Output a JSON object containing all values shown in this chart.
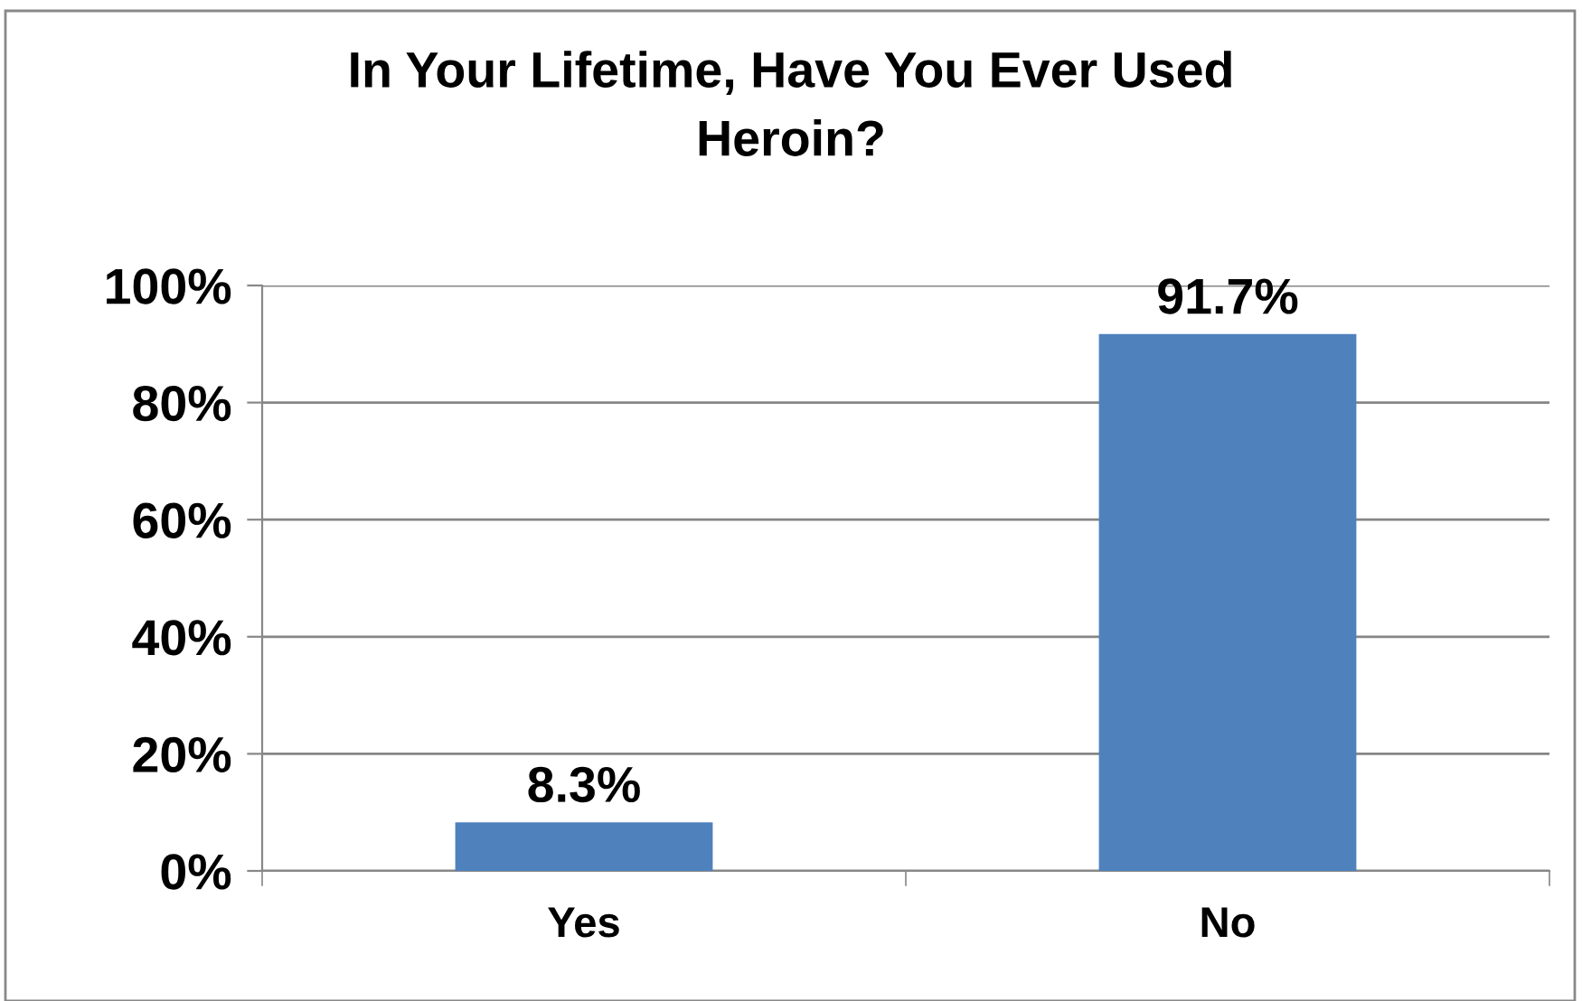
{
  "chart_data": {
    "type": "bar",
    "title": "In Your Lifetime, Have You Ever Used\nHeroin?",
    "categories": [
      "Yes",
      "No"
    ],
    "values": [
      8.3,
      91.7
    ],
    "value_labels": [
      "8.3%",
      "91.7%"
    ],
    "color": "#4f81bd",
    "ylim": [
      0,
      100
    ],
    "yticks": [
      {
        "value": 0,
        "label": "0%"
      },
      {
        "value": 20,
        "label": "20%"
      },
      {
        "value": 40,
        "label": "40%"
      },
      {
        "value": 60,
        "label": "60%"
      },
      {
        "value": 80,
        "label": "80%"
      },
      {
        "value": 100,
        "label": "100%"
      }
    ],
    "grid": "y",
    "legend": false
  }
}
